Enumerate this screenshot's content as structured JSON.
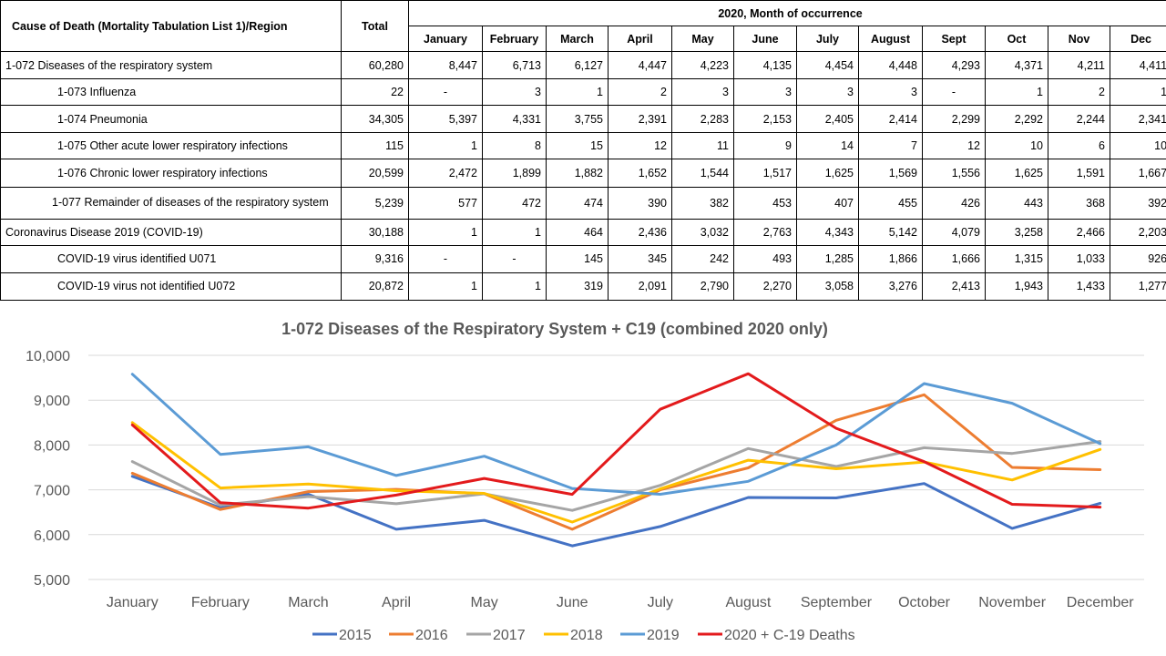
{
  "table": {
    "header_cause": "Cause of Death (Mortality Tabulation List 1)/Region",
    "header_total": "Total",
    "header_group": "2020, Month of occurrence",
    "months": [
      "January",
      "February",
      "March",
      "April",
      "May",
      "June",
      "July",
      "August",
      "Sept",
      "Oct",
      "Nov",
      "Dec"
    ],
    "rows": [
      {
        "cause": "1-072 Diseases of the respiratory system",
        "total": "60,280",
        "values": [
          "8,447",
          "6,713",
          "6,127",
          "4,447",
          "4,223",
          "4,135",
          "4,454",
          "4,448",
          "4,293",
          "4,371",
          "4,211",
          "4,411"
        ]
      },
      {
        "cause": "1-073 Influenza",
        "total": "22",
        "values": [
          "-",
          "3",
          "1",
          "2",
          "3",
          "3",
          "3",
          "3",
          "-",
          "1",
          "2",
          "1"
        ]
      },
      {
        "cause": "1-074 Pneumonia",
        "total": "34,305",
        "values": [
          "5,397",
          "4,331",
          "3,755",
          "2,391",
          "2,283",
          "2,153",
          "2,405",
          "2,414",
          "2,299",
          "2,292",
          "2,244",
          "2,341"
        ]
      },
      {
        "cause": "1-075 Other acute lower respiratory infections",
        "total": "115",
        "values": [
          "1",
          "8",
          "15",
          "12",
          "11",
          "9",
          "14",
          "7",
          "12",
          "10",
          "6",
          "10"
        ]
      },
      {
        "cause": "1-076 Chronic lower respiratory infections",
        "total": "20,599",
        "values": [
          "2,472",
          "1,899",
          "1,882",
          "1,652",
          "1,544",
          "1,517",
          "1,625",
          "1,569",
          "1,556",
          "1,625",
          "1,591",
          "1,667"
        ]
      },
      {
        "cause": "1-077 Remainder of diseases of the respiratory system",
        "total": "5,239",
        "values": [
          "577",
          "472",
          "474",
          "390",
          "382",
          "453",
          "407",
          "455",
          "426",
          "443",
          "368",
          "392"
        ]
      },
      {
        "cause": "Coronavirus Disease 2019 (COVID-19)",
        "total": "30,188",
        "values": [
          "1",
          "1",
          "464",
          "2,436",
          "3,032",
          "2,763",
          "4,343",
          "5,142",
          "4,079",
          "3,258",
          "2,466",
          "2,203"
        ]
      },
      {
        "cause": "COVID-19 virus identified U071",
        "total": "9,316",
        "values": [
          "-",
          "-",
          "145",
          "345",
          "242",
          "493",
          "1,285",
          "1,866",
          "1,666",
          "1,315",
          "1,033",
          "926"
        ]
      },
      {
        "cause": "COVID-19 virus not identified U072",
        "total": "20,872",
        "values": [
          "1",
          "1",
          "319",
          "2,091",
          "2,790",
          "2,270",
          "3,058",
          "3,276",
          "2,413",
          "1,943",
          "1,433",
          "1,277"
        ]
      }
    ]
  },
  "chart_data": {
    "type": "line",
    "title": "1-072 Diseases of the Respiratory System + C19 (combined 2020 only)",
    "categories": [
      "January",
      "February",
      "March",
      "April",
      "May",
      "June",
      "July",
      "August",
      "September",
      "October",
      "November",
      "December"
    ],
    "ylim": [
      5000,
      10000
    ],
    "yticks": [
      "5,000",
      "6,000",
      "7,000",
      "8,000",
      "9,000",
      "10,000"
    ],
    "ytick_values": [
      5000,
      6000,
      7000,
      8000,
      9000,
      10000
    ],
    "grid": true,
    "legend_position": "bottom",
    "series": [
      {
        "name": "2015",
        "color": "#4472C4",
        "values": [
          7300,
          6600,
          6900,
          6120,
          6320,
          5750,
          6180,
          6830,
          6820,
          7140,
          6140,
          6700
        ]
      },
      {
        "name": "2016",
        "color": "#ED7D31",
        "values": [
          7370,
          6560,
          6960,
          7010,
          6910,
          6120,
          7000,
          7490,
          8550,
          9120,
          7500,
          7450
        ]
      },
      {
        "name": "2017",
        "color": "#A5A5A5",
        "values": [
          7630,
          6660,
          6850,
          6690,
          6910,
          6540,
          7100,
          7920,
          7520,
          7940,
          7810,
          8080
        ]
      },
      {
        "name": "2018",
        "color": "#FFC000",
        "values": [
          8500,
          7040,
          7130,
          6980,
          6920,
          6280,
          7020,
          7660,
          7470,
          7620,
          7220,
          7900
        ]
      },
      {
        "name": "2019",
        "color": "#5B9BD5",
        "values": [
          9580,
          7790,
          7960,
          7320,
          7750,
          7030,
          6900,
          7190,
          8000,
          9370,
          8930,
          8030
        ]
      },
      {
        "name": "2020 + C-19 Deaths",
        "color": "#E31A1C",
        "values": [
          8448,
          6714,
          6591,
          6883,
          7255,
          6898,
          8797,
          9590,
          8372,
          7629,
          6677,
          6614
        ]
      }
    ]
  }
}
